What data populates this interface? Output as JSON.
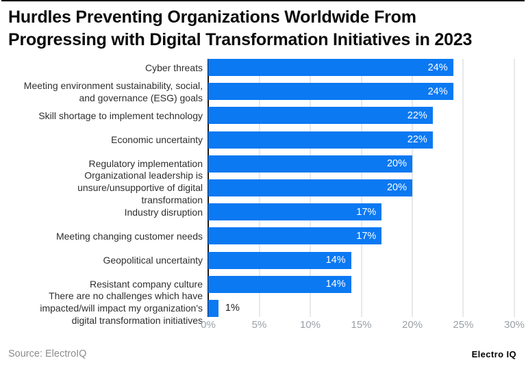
{
  "header": {
    "title_line1": "Hurdles Preventing Organizations Worldwide From",
    "title_line2": "Progressing with Digital Transformation Initiatives in 2023"
  },
  "chart_data": {
    "type": "bar",
    "orientation": "horizontal",
    "title": "Hurdles Preventing Organizations Worldwide From Progressing with Digital Transformation Initiatives in 2023",
    "categories": [
      "Cyber threats",
      "Meeting environment sustainability, social, and governance (ESG) goals",
      "Skill shortage to implement technology",
      "Economic uncertainty",
      "Regulatory implementation",
      "Organizational leadership is unsure/unsupportive of digital transformation",
      "Industry disruption",
      "Meeting changing customer needs",
      "Geopolitical uncertainty",
      "Resistant company culture",
      "There are no challenges which have impacted/will impact my organization's digital transformation initiatives"
    ],
    "values": [
      24,
      24,
      22,
      22,
      20,
      20,
      17,
      17,
      14,
      14,
      1
    ],
    "xlabel": "",
    "ylabel": "",
    "xlim": [
      0,
      30
    ],
    "x_ticks": [
      "0%",
      "5%",
      "10%",
      "15%",
      "20%",
      "25%",
      "30%"
    ],
    "grid": "vertical",
    "legend": "none",
    "bar_color": "#0b79f2",
    "rows": [
      {
        "label": "Cyber threats",
        "value": 24,
        "value_label": "24%",
        "label_inside": true
      },
      {
        "label": "Meeting environment sustainability, social,\nand governance (ESG) goals",
        "value": 24,
        "value_label": "24%",
        "label_inside": true
      },
      {
        "label": "Skill shortage to implement technology",
        "value": 22,
        "value_label": "22%",
        "label_inside": true
      },
      {
        "label": "Economic uncertainty",
        "value": 22,
        "value_label": "22%",
        "label_inside": true
      },
      {
        "label": "Regulatory implementation",
        "value": 20,
        "value_label": "20%",
        "label_inside": true
      },
      {
        "label": "Organizational leadership is\nunsure/unsupportive of digital\ntransformation",
        "value": 20,
        "value_label": "20%",
        "label_inside": true
      },
      {
        "label": "Industry disruption",
        "value": 17,
        "value_label": "17%",
        "label_inside": true
      },
      {
        "label": "Meeting changing customer needs",
        "value": 17,
        "value_label": "17%",
        "label_inside": true
      },
      {
        "label": "Geopolitical uncertainty",
        "value": 14,
        "value_label": "14%",
        "label_inside": true
      },
      {
        "label": "Resistant company culture",
        "value": 14,
        "value_label": "14%",
        "label_inside": true
      },
      {
        "label": "There are no challenges which have\nimpacted/will impact my organization's\ndigital transformation initiatives",
        "value": 1,
        "value_label": "1%",
        "label_inside": false
      }
    ]
  },
  "footer": {
    "source": "Source: ElectroIQ",
    "brand": "Electro IQ"
  },
  "colors": {
    "bar": "#0b79f2",
    "grid_line": "#e8e8e8",
    "axis_line": "#1a1a1a",
    "tick_text": "#9aa0a6",
    "value_text_inside": "#ffffff",
    "value_text_outside": "#1f1f1f",
    "title_text": "#0a0a0a",
    "label_text": "#2e2e2e",
    "source_text": "#8c8c8c",
    "background": "#ffffff",
    "top_border": "#000000"
  }
}
